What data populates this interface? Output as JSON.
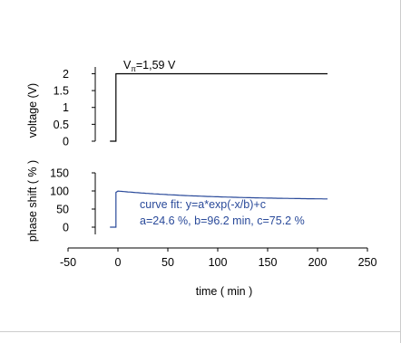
{
  "annotation": {
    "v_label": "V",
    "v_subscript": "π",
    "v_value": "=1,59 V"
  },
  "colors": {
    "voltage_line": "#000000",
    "phase_line": "#2a4a9a",
    "fit_text": "#2a4a9a",
    "axis": "#000000",
    "border": "#cccccc"
  },
  "chart_data": [
    {
      "type": "line",
      "title": "",
      "xlabel": "",
      "ylabel": "voltage (V)",
      "xlim": [
        -50,
        250
      ],
      "ylim": [
        0,
        2.2
      ],
      "yticks": [
        0,
        0.5,
        1,
        1.5,
        2
      ],
      "ytick_labels": [
        "0",
        "0.5",
        "1",
        "1.5",
        "2"
      ],
      "grid": false,
      "series": [
        {
          "x": [
            -8,
            -2,
            -2,
            210
          ],
          "y": [
            0,
            0,
            2,
            2
          ]
        }
      ]
    },
    {
      "type": "line",
      "title": "",
      "xlabel": "time ( min )",
      "ylabel": "phase shift ( % )",
      "xlim": [
        -50,
        250
      ],
      "ylim": [
        -20,
        150
      ],
      "xticks": [
        -50,
        0,
        50,
        100,
        150,
        200,
        250
      ],
      "xtick_labels": [
        "-50",
        "0",
        "50",
        "100",
        "150",
        "200",
        "250"
      ],
      "yticks": [
        0,
        50,
        100,
        150
      ],
      "ytick_labels": [
        "0",
        "50",
        "100",
        "150"
      ],
      "grid": false,
      "fit": {
        "a": 24.6,
        "b": 96.2,
        "c": 75.2
      },
      "annotation_lines": [
        "curve fit: y=a*exp(-x/b)+c",
        "a=24.6 %, b=96.2 min, c=75.2 %"
      ],
      "series": [
        {
          "x": [
            -8,
            -2,
            -2,
            0
          ],
          "y": [
            0,
            0,
            96,
            99.8
          ]
        }
      ]
    }
  ]
}
